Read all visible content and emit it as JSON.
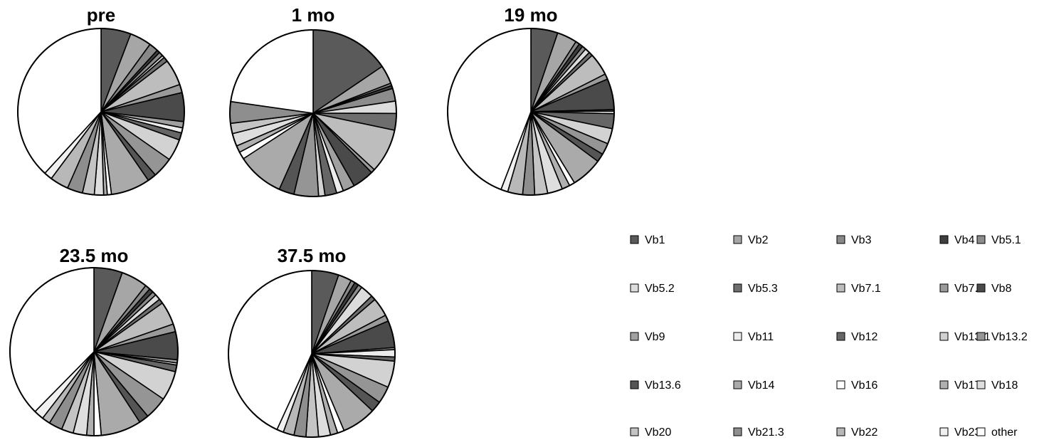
{
  "chart_data": {
    "type": "pie",
    "categories": [
      "Vb1",
      "Vb2",
      "Vb3",
      "Vb4",
      "Vb5.1",
      "Vb5.2",
      "Vb5.3",
      "Vb7.1",
      "Vb7.2",
      "Vb8",
      "Vb9",
      "Vb11",
      "Vb12",
      "Vb13.1",
      "Vb13.2",
      "Vb13.6",
      "Vb14",
      "Vb16",
      "Vb17",
      "Vb18",
      "Vb20",
      "Vb21.3",
      "Vb22",
      "Vb23",
      "other"
    ],
    "colors": [
      "#5a5a5a",
      "#a6a6a6",
      "#888888",
      "#3f3f3f",
      "#8c8c8c",
      "#dcdcdc",
      "#6e6e6e",
      "#bdbdbd",
      "#9a9a9a",
      "#4a4a4a",
      "#a0a0a0",
      "#ececec",
      "#666666",
      "#d2d2d2",
      "#959595",
      "#555555",
      "#aaaaaa",
      "#ffffff",
      "#b0b0b0",
      "#dedede",
      "#c4c4c4",
      "#8e8e8e",
      "#b8b8b8",
      "#f0f0f0",
      "#ffffff"
    ],
    "series": [
      {
        "name": "pre",
        "values": [
          5.8,
          4.2,
          1.8,
          0.6,
          0.8,
          0.5,
          0.9,
          5.1,
          1.6,
          5.6,
          1.2,
          1.0,
          1.4,
          4.2,
          4.0,
          1.7,
          7.6,
          0.8,
          0.7,
          1.8,
          2.3,
          3.0,
          3.6,
          1.6,
          38.2
        ]
      },
      {
        "name": "1 mo",
        "values": [
          16.3,
          3.8,
          0.5,
          0.6,
          2.6,
          2.5,
          3.4,
          9.0,
          0.8,
          4.4,
          2.4,
          1.4,
          2.4,
          1.3,
          5.0,
          3.1,
          9.6,
          1.5,
          1.4,
          2.6,
          2.1,
          4.4,
          0.0,
          0.0,
          23.9
        ]
      },
      {
        "name": "19 mo",
        "values": [
          5.4,
          4.0,
          0.8,
          0.8,
          0.8,
          1.0,
          0.8,
          4.5,
          1.1,
          6.2,
          0.3,
          0.5,
          3.0,
          3.1,
          2.3,
          1.7,
          6.3,
          1.1,
          1.6,
          3.0,
          2.6,
          2.4,
          3.0,
          1.4,
          45.6
        ]
      },
      {
        "name": "23.5 mo",
        "values": [
          5.5,
          5.1,
          1.0,
          0.8,
          0.8,
          1.1,
          0.9,
          4.5,
          1.5,
          5.4,
          0.6,
          0.4,
          1.3,
          5.7,
          4.4,
          1.9,
          7.8,
          1.4,
          1.4,
          2.6,
          2.3,
          2.6,
          1.6,
          1.9,
          37.7
        ]
      },
      {
        "name": "37.5 mo",
        "values": [
          5.2,
          2.6,
          0.8,
          0.8,
          0.8,
          2.5,
          0.9,
          3.6,
          1.2,
          5.2,
          0.4,
          1.4,
          0.8,
          5.1,
          3.3,
          2.1,
          6.6,
          1.3,
          1.4,
          2.3,
          2.4,
          2.3,
          2.1,
          1.3,
          42.8
        ]
      }
    ]
  }
}
